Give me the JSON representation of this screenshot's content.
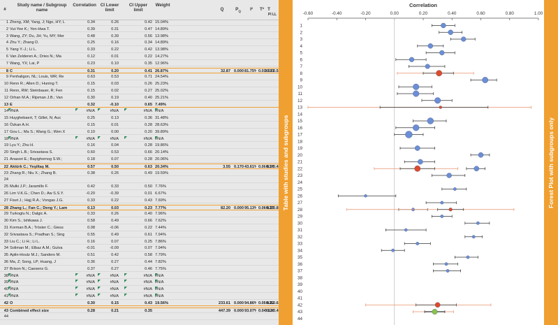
{
  "headers": {
    "num": "#",
    "study": "Study name / Subgroup name",
    "r": "Correlation",
    "lower": "CI Lower limit",
    "upper": "CI Upper limit",
    "weight": "Weight",
    "q": "Q",
    "pq": "P",
    "pq_sub": "Q",
    "i2": "I²",
    "t2": "T²",
    "t": "T",
    "pill": "PI LL",
    "piul": "PI UL"
  },
  "rows": [
    {
      "n": "1",
      "study": "Zheng, XM; Yang, J; Ngo, HY; L",
      "r": "0.34",
      "l": "0.26",
      "u": "0.42",
      "w": "15.04%"
    },
    {
      "n": "2",
      "study": "Vui-Yee K.; Yen-Hwa T.",
      "r": "0.39",
      "l": "0.31",
      "u": "0.47",
      "w": "14.89%"
    },
    {
      "n": "3",
      "study": "Wang, ZY; Du, JH; Yu, MY; Mer",
      "r": "0.48",
      "l": "0.39",
      "u": "0.56",
      "w": "13.98%"
    },
    {
      "n": "4",
      "study": "Zhu Y.; Zhang D.",
      "r": "0.25",
      "l": "0.16",
      "u": "0.34",
      "w": "14.89%"
    },
    {
      "n": "5",
      "study": "Yang Y.-J.; Li L.",
      "r": "0.33",
      "l": "0.22",
      "u": "0.42",
      "w": "13.98%"
    },
    {
      "n": "6",
      "study": "Van Zelderen A.; Dries N.; Ma",
      "r": "0.12",
      "l": "0.01",
      "u": "0.22",
      "w": "14.27%"
    },
    {
      "n": "7",
      "study": "Wang, YX; Lai, P",
      "r": "0.23",
      "l": "0.10",
      "u": "0.35",
      "w": "12.96%"
    },
    {
      "n": "8",
      "study": "C",
      "r": "0.31",
      "l": "0.20",
      "u": "0.41",
      "w": "26.87%",
      "q": "32.87",
      "pq": "0.000",
      "i2": "81.75%",
      "t2": "0.01",
      "t": "0.11",
      "pill": "0.02",
      "piul": "0.55",
      "sub": true
    },
    {
      "n": "9",
      "study": "Penhaligon, NL; Louis, WR; Re",
      "r": "0.63",
      "l": "0.53",
      "u": "0.71",
      "w": "24.54%"
    },
    {
      "n": "10",
      "study": "Renn R.; Allen D.; Huning T.",
      "r": "0.15",
      "l": "0.03",
      "u": "0.26",
      "w": "25.23%"
    },
    {
      "n": "11",
      "study": "Renn, RW; Steinbauer, R; Fen",
      "r": "0.15",
      "l": "0.02",
      "u": "0.27",
      "w": "25.02%"
    },
    {
      "n": "12",
      "study": "Orhan M.A.; Rijsman J.B.; Van",
      "r": "0.30",
      "l": "0.19",
      "u": "0.40",
      "w": "25.21%"
    },
    {
      "n": "13",
      "study": "E",
      "r": "0.32",
      "l": "-0.10",
      "u": "0.65",
      "w": "7.49%",
      "subplain": true
    },
    {
      "n": "14",
      "study": "#N/A",
      "r": "#N/A",
      "l": "#N/A",
      "u": "#N/A",
      "w": "#N/A",
      "na": true
    },
    {
      "n": "15",
      "study": "Huyghebaert, T; Gillet, N; Auc",
      "r": "0.25",
      "l": "0.13",
      "u": "0.36",
      "w": "31.48%"
    },
    {
      "n": "16",
      "study": "Özkan A.H.",
      "r": "0.15",
      "l": "0.01",
      "u": "0.28",
      "w": "28.63%"
    },
    {
      "n": "17",
      "study": "Gou L.; Ma S.; Wang G.; Wen X",
      "r": "0.10",
      "l": "0.00",
      "u": "0.20",
      "w": "39.89%"
    },
    {
      "n": "18",
      "study": "#N/A",
      "r": "#N/A",
      "l": "#N/A",
      "u": "#N/A",
      "w": "#N/A",
      "na": true
    },
    {
      "n": "19",
      "study": "Lyu Y.; Zhu H.",
      "r": "0.16",
      "l": "0.04",
      "u": "0.28",
      "w": "19.86%"
    },
    {
      "n": "20",
      "study": "Singh L.B.; Srivastava S.",
      "r": "0.60",
      "l": "0.53",
      "u": "0.66",
      "w": "20.14%"
    },
    {
      "n": "21",
      "study": "Anasori E.; Bayighomog S.W.;",
      "r": "0.18",
      "l": "0.07",
      "u": "0.28",
      "w": "20.06%"
    },
    {
      "n": "22",
      "study": "Aktürk C.; Yeşiltaş M.",
      "r": "0.57",
      "l": "0.50",
      "u": "0.63",
      "w": "20.34%",
      "q": "3.55",
      "pq": "0.170",
      "i2": "43.61%",
      "t2": "0.00",
      "t": "0.05",
      "pill": "-0.14",
      "piul": "0.44",
      "sub": true
    },
    {
      "n": "23",
      "study": "Zhang R.; Niu X.; Zhang B.",
      "r": "0.38",
      "l": "0.26",
      "u": "0.49",
      "w": "19.59%"
    },
    {
      "n": "24",
      "study": "",
      "r": "",
      "l": "",
      "u": "",
      "w": ""
    },
    {
      "n": "25",
      "study": "Mulki J.P.; Jaramillo F.",
      "r": "0.42",
      "l": "0.33",
      "u": "0.50",
      "w": "7.76%"
    },
    {
      "n": "26",
      "study": "Lim V.K.G.; Chen D.; Aw S.S.Y.",
      "r": "-0.20",
      "l": "-0.39",
      "u": "0.01",
      "w": "6.67%"
    },
    {
      "n": "27",
      "study": "Fiset J.; Hajj R.A.; Vongas J.G.",
      "r": "0.33",
      "l": "0.22",
      "u": "0.43",
      "w": "7.69%"
    },
    {
      "n": "28",
      "study": "Zhang L.; Fan C.; Deng Y.; Lam",
      "r": "0.13",
      "l": "0.03",
      "u": "0.23",
      "w": "7.77%",
      "q": "82.20",
      "pq": "0.000",
      "i2": "95.13%",
      "t2": "0.06",
      "t": "0.25",
      "pill": "-0.33",
      "piul": "0.83",
      "sub": true
    },
    {
      "n": "29",
      "study": "Turkoglu N.; Dalgic A.",
      "r": "0.33",
      "l": "0.26",
      "u": "0.40",
      "w": "7.96%"
    },
    {
      "n": "30",
      "study": "Kim S.; Ishikawa J.",
      "r": "0.58",
      "l": "0.49",
      "u": "0.66",
      "w": "7.62%"
    },
    {
      "n": "31",
      "study": "Korman B.A.; Tröster C.; Giess",
      "r": "0.08",
      "l": "-0.06",
      "u": "0.22",
      "w": "7.44%"
    },
    {
      "n": "32",
      "study": "Srivastava S.; Pradhan S.; Sing",
      "r": "0.55",
      "l": "0.49",
      "u": "0.61",
      "w": "7.94%"
    },
    {
      "n": "33",
      "study": "Liu C.; Li H.; Li L.",
      "r": "0.16",
      "l": "0.07",
      "u": "0.25",
      "w": "7.86%"
    },
    {
      "n": "34",
      "study": "Soliman M.; Elbaz A.M.; Gulva",
      "r": "-0.01",
      "l": "-0.09",
      "u": "0.07",
      "w": "7.94%"
    },
    {
      "n": "35",
      "study": "Aplin-Houtz M.J.; Sanders M.",
      "r": "0.51",
      "l": "0.42",
      "u": "0.58",
      "w": "7.79%"
    },
    {
      "n": "36",
      "study": "Ma, Z; Song, LP; Huang, J",
      "r": "0.36",
      "l": "0.27",
      "u": "0.44",
      "w": "7.82%"
    },
    {
      "n": "37",
      "study": "Brison N.; Caesens G.",
      "r": "0.37",
      "l": "0.27",
      "u": "0.46",
      "w": "7.75%"
    },
    {
      "n": "38",
      "study": "#N/A",
      "r": "#N/A",
      "l": "#N/A",
      "u": "#N/A",
      "w": "#N/A",
      "na": true
    },
    {
      "n": "39",
      "study": "#N/A",
      "r": "#N/A",
      "l": "#N/A",
      "u": "#N/A",
      "w": "#N/A",
      "na": true
    },
    {
      "n": "40",
      "study": "#N/A",
      "r": "#N/A",
      "l": "#N/A",
      "u": "#N/A",
      "w": "#N/A",
      "na": true
    },
    {
      "n": "41",
      "study": "#N/A",
      "r": "#N/A",
      "l": "#N/A",
      "u": "#N/A",
      "w": "#N/A",
      "na": true
    },
    {
      "n": "42",
      "study": "O",
      "r": "0.30",
      "l": "0.15",
      "u": "0.43",
      "w": "19.56%",
      "q": "233.61",
      "pq": "0.000",
      "i2": "94.86%",
      "t2": "0.05",
      "t": "0.22",
      "pill": "-0.20",
      "piul": "0.67",
      "subplain": true
    },
    {
      "n": "43",
      "study": "Combined effect size",
      "r": "0.28",
      "l": "0.21",
      "u": "0.35",
      "w": "",
      "q": "447.39",
      "pq": "0.000",
      "i2": "93.07%",
      "t2": "0.04",
      "t": "0.20",
      "pill": "0.13",
      "piul": "0.41",
      "comb": true
    },
    {
      "n": "44",
      "study": "",
      "r": "",
      "l": "",
      "u": "",
      "w": ""
    }
  ],
  "bands": {
    "left": "Table with studies and subgroups",
    "right": "Forest Plot with subgroups only"
  },
  "chart_data": {
    "type": "scatter",
    "title": "Correlation",
    "xlim": [
      -0.6,
      1.0
    ],
    "xticks": [
      "-0.60",
      "-0.40",
      "-0.20",
      "0.00",
      "0.20",
      "0.40",
      "0.60",
      "0.80",
      "1.00"
    ],
    "ylabels": [
      "1",
      "2",
      "3",
      "4",
      "5",
      "6",
      "7",
      "8",
      "9",
      "10",
      "11",
      "12",
      "13",
      "14",
      "15",
      "16",
      "17",
      "18",
      "19",
      "20",
      "21",
      "22",
      "23",
      "24",
      "25",
      "26",
      "27",
      "28",
      "29",
      "30",
      "31",
      "32",
      "33",
      "34",
      "35",
      "36",
      "37",
      "38",
      "39",
      "40",
      "41",
      "42",
      "43",
      "44"
    ],
    "colors": {
      "study": "#6b8ed6",
      "subgroup": "#e04a2a",
      "pi": "#e8906a",
      "combined": "#8bc34a",
      "ci": "#333333",
      "zero": "#bbbbbb"
    },
    "points": [
      {
        "row": 1,
        "r": 0.34,
        "l": 0.26,
        "u": 0.42,
        "kind": "study",
        "size": 3.5
      },
      {
        "row": 2,
        "r": 0.39,
        "l": 0.31,
        "u": 0.47,
        "kind": "study",
        "size": 3.5
      },
      {
        "row": 3,
        "r": 0.48,
        "l": 0.39,
        "u": 0.56,
        "kind": "study",
        "size": 3.4
      },
      {
        "row": 4,
        "r": 0.25,
        "l": 0.16,
        "u": 0.34,
        "kind": "study",
        "size": 3.5
      },
      {
        "row": 5,
        "r": 0.33,
        "l": 0.22,
        "u": 0.42,
        "kind": "study",
        "size": 3.4
      },
      {
        "row": 6,
        "r": 0.12,
        "l": 0.01,
        "u": 0.22,
        "kind": "study",
        "size": 3.4
      },
      {
        "row": 7,
        "r": 0.23,
        "l": 0.1,
        "u": 0.35,
        "kind": "study",
        "size": 3.3
      },
      {
        "row": 8,
        "r": 0.31,
        "l": 0.2,
        "u": 0.41,
        "kind": "subgroup",
        "size": 4.2,
        "pil": 0.02,
        "piu": 0.55
      },
      {
        "row": 9,
        "r": 0.63,
        "l": 0.53,
        "u": 0.71,
        "kind": "study",
        "size": 4.2
      },
      {
        "row": 10,
        "r": 0.15,
        "l": 0.03,
        "u": 0.26,
        "kind": "study",
        "size": 4.3
      },
      {
        "row": 11,
        "r": 0.15,
        "l": 0.02,
        "u": 0.27,
        "kind": "study",
        "size": 4.3
      },
      {
        "row": 12,
        "r": 0.3,
        "l": 0.19,
        "u": 0.4,
        "kind": "study",
        "size": 4.3
      },
      {
        "row": 13,
        "r": 0.32,
        "l": -0.1,
        "u": 0.65,
        "kind": "subgroup",
        "size": 2.0,
        "pil": -0.6,
        "piu": 0.95
      },
      {
        "row": 15,
        "r": 0.25,
        "l": 0.13,
        "u": 0.36,
        "kind": "study",
        "size": 4.5
      },
      {
        "row": 16,
        "r": 0.15,
        "l": 0.01,
        "u": 0.28,
        "kind": "study",
        "size": 4.4
      },
      {
        "row": 17,
        "r": 0.1,
        "l": 0.0,
        "u": 0.2,
        "kind": "study",
        "size": 5.0
      },
      {
        "row": 19,
        "r": 0.16,
        "l": 0.04,
        "u": 0.28,
        "kind": "study",
        "size": 3.6
      },
      {
        "row": 20,
        "r": 0.6,
        "l": 0.53,
        "u": 0.66,
        "kind": "study",
        "size": 3.6
      },
      {
        "row": 21,
        "r": 0.18,
        "l": 0.07,
        "u": 0.28,
        "kind": "study",
        "size": 3.6
      },
      {
        "row": 22,
        "r": 0.57,
        "l": 0.5,
        "u": 0.63,
        "kind": "study",
        "size": 3.6
      },
      {
        "row": 22,
        "r": 0.16,
        "l": 0.04,
        "u": 0.28,
        "kind": "subgroup",
        "size": 4.2,
        "pil": -0.14,
        "piu": 0.44
      },
      {
        "row": 23,
        "r": 0.38,
        "l": 0.26,
        "u": 0.49,
        "kind": "study",
        "size": 3.5
      },
      {
        "row": 25,
        "r": 0.42,
        "l": 0.33,
        "u": 0.5,
        "kind": "study",
        "size": 2.2
      },
      {
        "row": 26,
        "r": -0.2,
        "l": -0.39,
        "u": 0.01,
        "kind": "study",
        "size": 2.0
      },
      {
        "row": 27,
        "r": 0.33,
        "l": 0.22,
        "u": 0.43,
        "kind": "study",
        "size": 2.2
      },
      {
        "row": 28,
        "r": 0.13,
        "l": 0.03,
        "u": 0.23,
        "kind": "study",
        "size": 2.2
      },
      {
        "row": 28,
        "r": 0.39,
        "l": 0.3,
        "u": 0.48,
        "kind": "subgroup",
        "size": 2.4,
        "pil": -0.33,
        "piu": 0.83
      },
      {
        "row": 29,
        "r": 0.33,
        "l": 0.26,
        "u": 0.4,
        "kind": "study",
        "size": 2.2
      },
      {
        "row": 30,
        "r": 0.58,
        "l": 0.49,
        "u": 0.66,
        "kind": "study",
        "size": 2.2
      },
      {
        "row": 31,
        "r": 0.08,
        "l": -0.06,
        "u": 0.22,
        "kind": "study",
        "size": 2.1
      },
      {
        "row": 32,
        "r": 0.55,
        "l": 0.49,
        "u": 0.61,
        "kind": "study",
        "size": 2.2
      },
      {
        "row": 33,
        "r": 0.16,
        "l": 0.07,
        "u": 0.25,
        "kind": "study",
        "size": 2.2
      },
      {
        "row": 34,
        "r": -0.01,
        "l": -0.09,
        "u": 0.07,
        "kind": "study",
        "size": 2.2
      },
      {
        "row": 35,
        "r": 0.51,
        "l": 0.42,
        "u": 0.58,
        "kind": "study",
        "size": 2.2
      },
      {
        "row": 36,
        "r": 0.36,
        "l": 0.27,
        "u": 0.44,
        "kind": "study",
        "size": 2.2
      },
      {
        "row": 37,
        "r": 0.37,
        "l": 0.27,
        "u": 0.46,
        "kind": "study",
        "size": 2.2
      },
      {
        "row": 42,
        "r": 0.3,
        "l": 0.15,
        "u": 0.43,
        "kind": "subgroup",
        "size": 3.6,
        "pil": -0.2,
        "piu": 0.67
      },
      {
        "row": 43,
        "r": 0.28,
        "l": 0.21,
        "u": 0.35,
        "kind": "combined",
        "size": 3.8,
        "pil": 0.13,
        "piu": 0.41
      }
    ]
  }
}
